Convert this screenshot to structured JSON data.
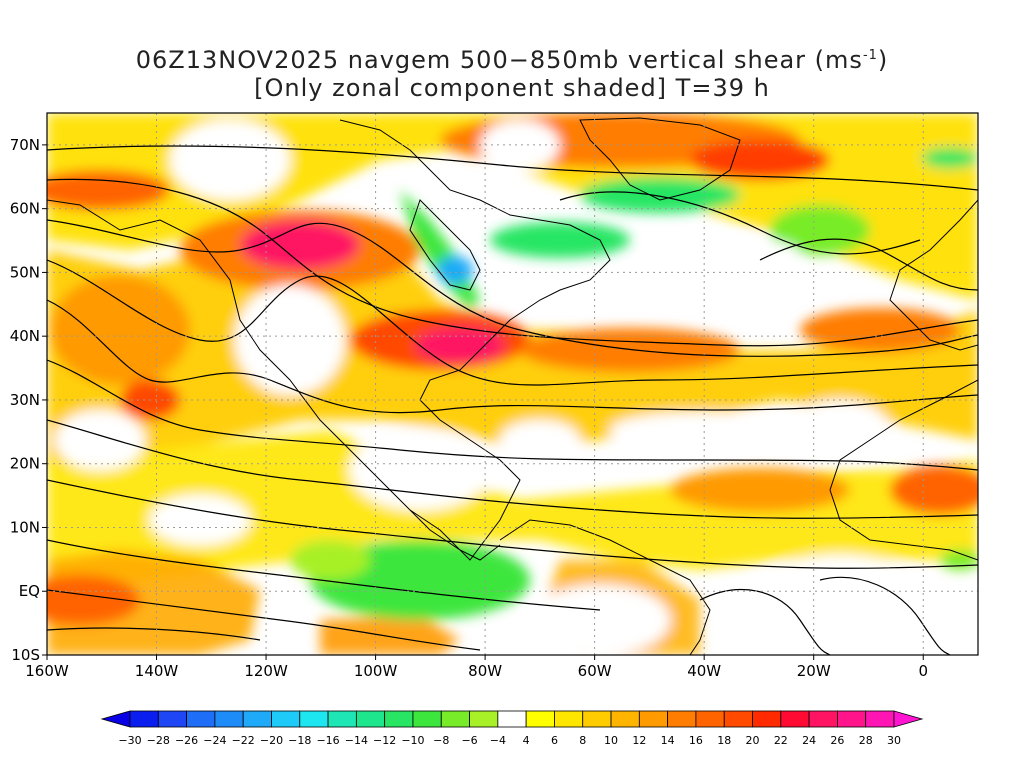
{
  "header": {
    "title_line1": "06Z13NOV2025 navgem 500−850mb vertical shear (ms",
    "title_line1_sup": "-1",
    "title_line1_end": ")",
    "title_line2": "[Only zonal component shaded] T=39 h"
  },
  "map": {
    "lon_labels": [
      "160W",
      "140W",
      "120W",
      "100W",
      "80W",
      "60W",
      "40W",
      "20W",
      "0"
    ],
    "lat_labels": [
      "70N",
      "60N",
      "50N",
      "40N",
      "30N",
      "20N",
      "10N",
      "EQ",
      "10S"
    ],
    "lon_range": [
      -160,
      10
    ],
    "lat_range": [
      -10,
      75
    ],
    "grid": "dotted"
  },
  "colorbar": {
    "labels": [
      "-30",
      "-28",
      "-26",
      "-24",
      "-22",
      "-20",
      "-18",
      "-16",
      "-14",
      "-12",
      "-10",
      "-8",
      "-6",
      "-4",
      "4",
      "6",
      "8",
      "10",
      "12",
      "14",
      "16",
      "18",
      "20",
      "22",
      "24",
      "26",
      "28",
      "30"
    ],
    "colors": [
      "#0a1ef0",
      "#1e46f5",
      "#1f6ef7",
      "#1e8cf8",
      "#1eaaf8",
      "#1ecaf8",
      "#1ee6f0",
      "#1ee6b4",
      "#1ee68c",
      "#28e664",
      "#3ce63c",
      "#78ec28",
      "#a8f028",
      "#ffffff",
      "#ffff00",
      "#ffe600",
      "#ffcc00",
      "#ffb400",
      "#ff9a00",
      "#ff7d00",
      "#ff6400",
      "#ff4a00",
      "#ff2a00",
      "#ff0a32",
      "#ff1464",
      "#ff148c",
      "#ff14b4"
    ],
    "under_color": "#0a00e6",
    "over_color": "#ff14d2"
  }
}
